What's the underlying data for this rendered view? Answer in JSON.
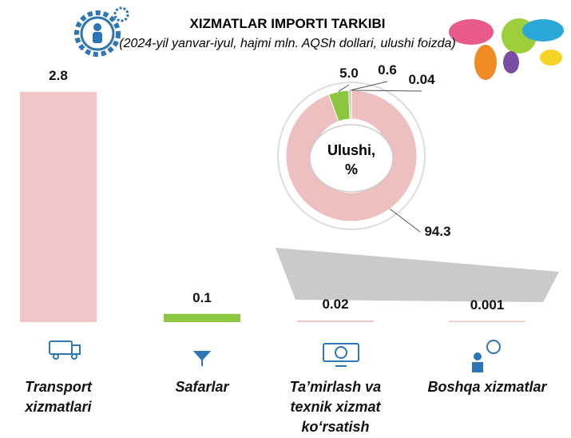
{
  "chart_data": [
    {
      "type": "bar",
      "title": "XIZMATLAR IMPORTI TARKIBI",
      "subtitle": "(2024-yil yanvar-iyul, hajmi mln. AQSh dollari, ulushi foizda)",
      "categories": [
        "Transport xizmatlari",
        "Safarlar",
        "Ta’mirlash va texnik xizmat ko‘rsatish",
        "Boshqa xizmatlar"
      ],
      "values": [
        2.8,
        0.1,
        0.02,
        0.001
      ],
      "colors": [
        "#f2c6c6",
        "#8cc63f",
        "#f2c6c6",
        "#f2c6c6"
      ]
    },
    {
      "type": "pie",
      "center_label": "Ulushi, %",
      "values": [
        94.3,
        5.0,
        0.6,
        0.04
      ],
      "value_labels": [
        "94.3",
        "5.0",
        "0.6",
        "0.04"
      ],
      "colors": [
        "#eebfbf",
        "#8cc63f",
        "#b9b9b9",
        "#6f6f6f"
      ]
    }
  ]
}
